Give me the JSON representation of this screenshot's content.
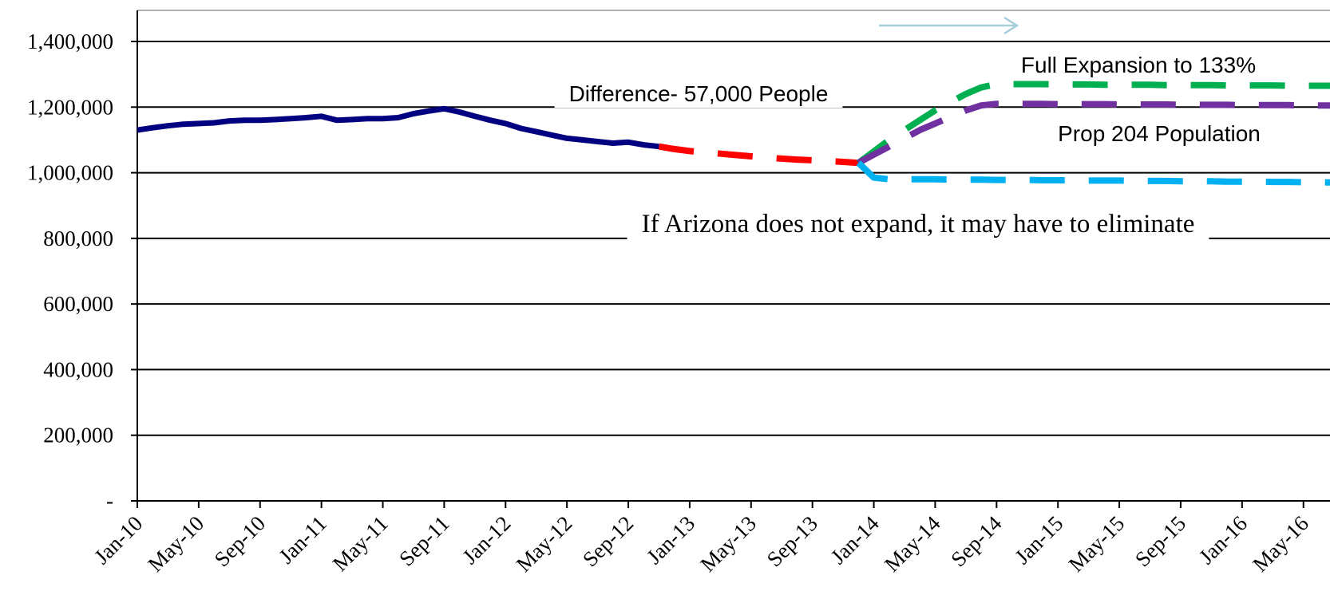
{
  "chart_data": {
    "type": "line",
    "categories": [
      "Jan-10",
      null,
      null,
      null,
      "May-10",
      null,
      null,
      null,
      "Sep-10",
      null,
      null,
      null,
      "Jan-11",
      null,
      null,
      null,
      "May-11",
      null,
      null,
      null,
      "Sep-11",
      null,
      null,
      null,
      "Jan-12",
      null,
      null,
      null,
      "May-12",
      null,
      null,
      null,
      "Sep-12",
      null,
      null,
      null,
      "Jan-13",
      null,
      null,
      null,
      "May-13",
      null,
      null,
      null,
      "Sep-13",
      null,
      null,
      null,
      "Jan-14",
      null,
      null,
      null,
      "May-14",
      null,
      null,
      null,
      "Sep-14",
      null,
      null,
      null,
      "Jan-15",
      null,
      null,
      null,
      "May-15",
      null,
      null,
      null,
      "Sep-15",
      null,
      null,
      null,
      "Jan-16",
      null,
      null,
      null,
      "May-16",
      null,
      null
    ],
    "ylim": [
      0,
      1400000
    ],
    "yticks": [
      {
        "value": 0,
        "label": "-"
      },
      {
        "value": 200000,
        "label": "200,000"
      },
      {
        "value": 400000,
        "label": "400,000"
      },
      {
        "value": 600000,
        "label": "600,000"
      },
      {
        "value": 800000,
        "label": "800,000"
      },
      {
        "value": 1000000,
        "label": "1,000,000"
      },
      {
        "value": 1200000,
        "label": "1,200,000"
      },
      {
        "value": 1400000,
        "label": "1,400,000"
      }
    ],
    "grid": true,
    "series": [
      {
        "color": "#000080",
        "dashed": false,
        "values": [
          1130000,
          1137000,
          1143000,
          1148000,
          1150000,
          1152000,
          1158000,
          1160000,
          1160000,
          1162000,
          1165000,
          1168000,
          1172000,
          1160000,
          1162000,
          1165000,
          1165000,
          1168000,
          1180000,
          1188000,
          1195000,
          1185000,
          1172000,
          1160000,
          1150000,
          1135000,
          1125000,
          1115000,
          1105000,
          1100000,
          1095000,
          1090000,
          1093000,
          1085000,
          1080000,
          null,
          null,
          null,
          null,
          null,
          null,
          null,
          null,
          null,
          null,
          null,
          null,
          null,
          null,
          null,
          null,
          null,
          null,
          null,
          null,
          null,
          null,
          null,
          null,
          null,
          null,
          null,
          null,
          null,
          null,
          null,
          null,
          null,
          null,
          null,
          null,
          null,
          null,
          null,
          null,
          null,
          null,
          null,
          null
        ]
      },
      {
        "color": "#ff0000",
        "dashed": true,
        "values": [
          null,
          null,
          null,
          null,
          null,
          null,
          null,
          null,
          null,
          null,
          null,
          null,
          null,
          null,
          null,
          null,
          null,
          null,
          null,
          null,
          null,
          null,
          null,
          null,
          null,
          null,
          null,
          null,
          null,
          null,
          null,
          null,
          null,
          null,
          1080000,
          1072000,
          1066000,
          1062000,
          1058000,
          1054000,
          1050000,
          1046000,
          1043000,
          1040000,
          1038000,
          1036000,
          1033000,
          1030000,
          null,
          null,
          null,
          null,
          null,
          null,
          null,
          null,
          null,
          null,
          null,
          null,
          null,
          null,
          null,
          null,
          null,
          null,
          null,
          null,
          null,
          null,
          null,
          null,
          null,
          null,
          null,
          null,
          null,
          null,
          null
        ]
      },
      {
        "color": "#00b050",
        "dashed": true,
        "values": [
          null,
          null,
          null,
          null,
          null,
          null,
          null,
          null,
          null,
          null,
          null,
          null,
          null,
          null,
          null,
          null,
          null,
          null,
          null,
          null,
          null,
          null,
          null,
          null,
          null,
          null,
          null,
          null,
          null,
          null,
          null,
          null,
          null,
          null,
          null,
          null,
          null,
          null,
          null,
          null,
          null,
          null,
          null,
          null,
          null,
          null,
          null,
          1030000,
          1065000,
          1100000,
          1130000,
          1160000,
          1190000,
          1215000,
          1240000,
          1260000,
          1270000,
          1270000,
          1270000,
          1270000,
          1269000,
          1269000,
          1269000,
          1268000,
          1268000,
          1268000,
          1268000,
          1267000,
          1267000,
          1267000,
          1267000,
          1266000,
          1266000,
          1266000,
          1266000,
          1265000,
          1265000,
          1265000,
          1265000
        ]
      },
      {
        "color": "#7030a0",
        "dashed": true,
        "values": [
          null,
          null,
          null,
          null,
          null,
          null,
          null,
          null,
          null,
          null,
          null,
          null,
          null,
          null,
          null,
          null,
          null,
          null,
          null,
          null,
          null,
          null,
          null,
          null,
          null,
          null,
          null,
          null,
          null,
          null,
          null,
          null,
          null,
          null,
          null,
          null,
          null,
          null,
          null,
          null,
          null,
          null,
          null,
          null,
          null,
          null,
          null,
          1030000,
          1055000,
          1080000,
          1105000,
          1130000,
          1150000,
          1170000,
          1190000,
          1205000,
          1210000,
          1210000,
          1210000,
          1210000,
          1209000,
          1209000,
          1209000,
          1209000,
          1208000,
          1208000,
          1208000,
          1208000,
          1207000,
          1207000,
          1207000,
          1207000,
          1206000,
          1206000,
          1206000,
          1206000,
          1205000,
          1205000,
          1205000
        ]
      },
      {
        "color": "#00b0f0",
        "dashed": true,
        "values": [
          null,
          null,
          null,
          null,
          null,
          null,
          null,
          null,
          null,
          null,
          null,
          null,
          null,
          null,
          null,
          null,
          null,
          null,
          null,
          null,
          null,
          null,
          null,
          null,
          null,
          null,
          null,
          null,
          null,
          null,
          null,
          null,
          null,
          null,
          null,
          null,
          null,
          null,
          null,
          null,
          null,
          null,
          null,
          null,
          null,
          null,
          null,
          1030000,
          985000,
          980000,
          980000,
          980000,
          980000,
          979000,
          979000,
          979000,
          978000,
          978000,
          978000,
          977000,
          977000,
          977000,
          976000,
          976000,
          976000,
          975000,
          975000,
          975000,
          974000,
          974000,
          974000,
          973000,
          973000,
          973000,
          972000,
          972000,
          971000,
          971000,
          970000
        ]
      }
    ],
    "annotations": [
      "Difference- 57,000 People",
      "Full Expansion to 133%",
      "Prop 204 Population",
      "If Arizona does not expand, it may have to eliminate"
    ]
  }
}
